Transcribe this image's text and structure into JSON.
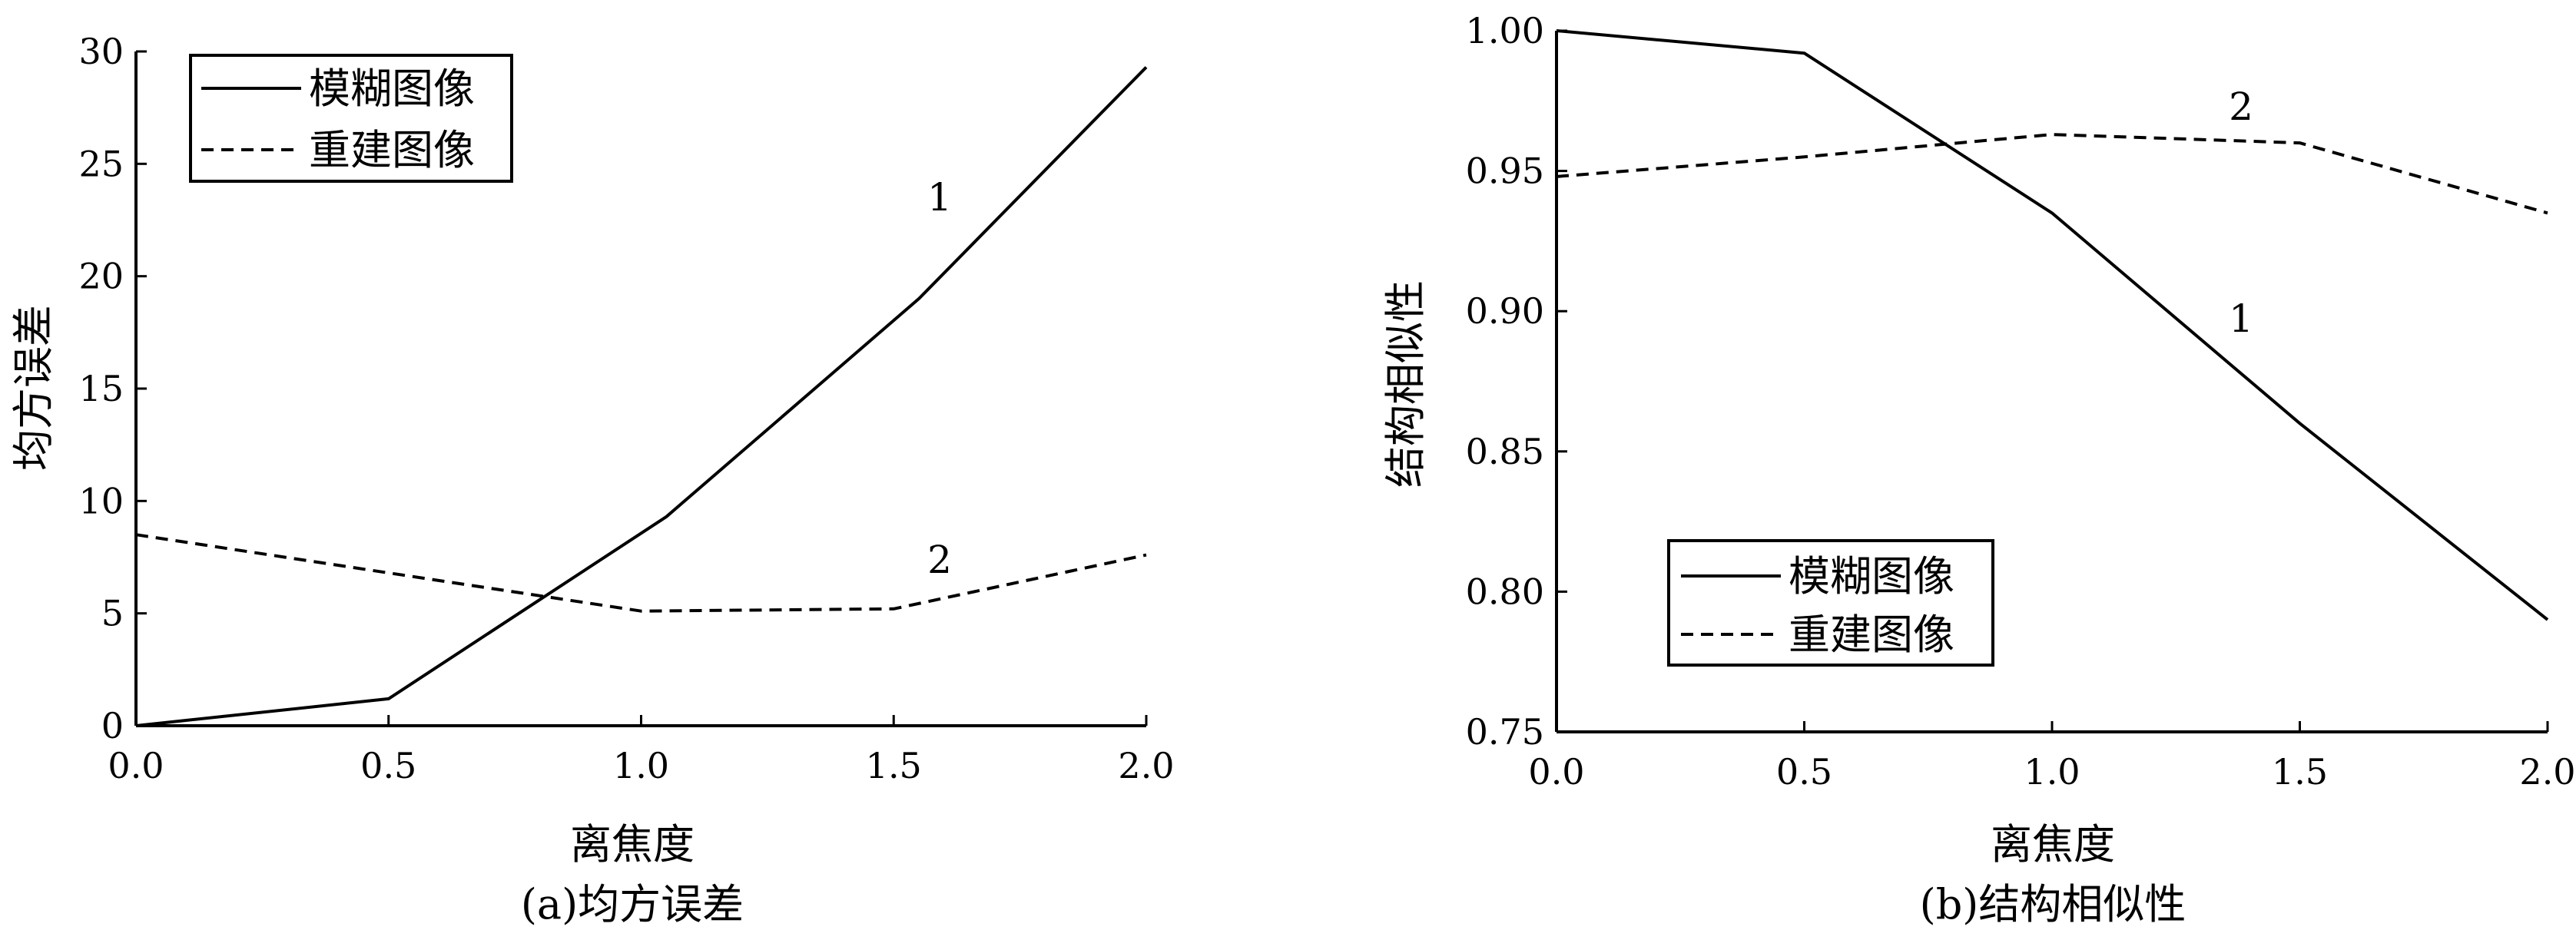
{
  "chart_data": [
    {
      "type": "line",
      "caption": "(a)均方误差",
      "xlabel": "离焦度",
      "ylabel": "均方误差",
      "xlim": [
        0.0,
        2.0
      ],
      "ylim": [
        0,
        30
      ],
      "xticks": [
        "0.0",
        "0.5",
        "1.0",
        "1.5",
        "2.0"
      ],
      "yticks": [
        "0",
        "5",
        "10",
        "15",
        "20",
        "25",
        "30"
      ],
      "legend_position": "top-left",
      "series": [
        {
          "name": "模糊图像",
          "style": "solid",
          "label": "1",
          "x": [
            0.0,
            0.5,
            1.05,
            1.55,
            2.0
          ],
          "y": [
            0.0,
            1.2,
            9.3,
            19.0,
            29.3
          ]
        },
        {
          "name": "重建图像",
          "style": "dashed",
          "label": "2",
          "x": [
            0.0,
            0.5,
            1.0,
            1.5,
            2.0
          ],
          "y": [
            8.5,
            6.8,
            5.1,
            5.2,
            7.6
          ]
        }
      ]
    },
    {
      "type": "line",
      "caption": "(b)结构相似性",
      "xlabel": "离焦度",
      "ylabel": "结构相似性",
      "xlim": [
        0.0,
        2.0
      ],
      "ylim": [
        0.75,
        1.0
      ],
      "xticks": [
        "0.0",
        "0.5",
        "1.0",
        "1.5",
        "2.0"
      ],
      "yticks": [
        "0.75",
        "0.80",
        "0.85",
        "0.90",
        "0.95",
        "1.00"
      ],
      "legend_position": "bottom-left",
      "series": [
        {
          "name": "模糊图像",
          "style": "solid",
          "label": "1",
          "x": [
            0.0,
            0.5,
            1.0,
            1.5,
            2.0
          ],
          "y": [
            1.0,
            0.992,
            0.935,
            0.86,
            0.79
          ]
        },
        {
          "name": "重建图像",
          "style": "dashed",
          "label": "2",
          "x": [
            0.0,
            0.5,
            1.0,
            1.5,
            2.0
          ],
          "y": [
            0.948,
            0.955,
            0.963,
            0.96,
            0.935
          ]
        }
      ]
    }
  ]
}
